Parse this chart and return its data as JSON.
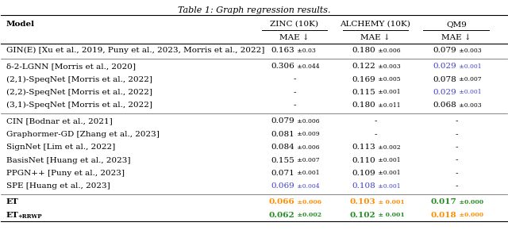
{
  "title": "Table 1: Graph regression results.",
  "col_headers_top": [
    "",
    "ZINC (10K)",
    "ALCHEMY (10K)",
    "QM9"
  ],
  "col_headers_sub": [
    "Model",
    "MAE ↓",
    "MAE ↓",
    "MAE ↓"
  ],
  "rows": [
    {
      "group": 0,
      "model": "GIN(E) [Xu et al., 2019, Puny et al., 2023, Morris et al., 2022]",
      "zinc": [
        "0.163",
        "±0.03",
        "black"
      ],
      "alchemy": [
        "0.180",
        "±0.006",
        "black"
      ],
      "qm9": [
        "0.079",
        "±0.003",
        "black"
      ]
    },
    {
      "group": 1,
      "model": "δ-2-LGNN [Morris et al., 2020]",
      "zinc": [
        "0.306",
        "±0.044",
        "black"
      ],
      "alchemy": [
        "0.122",
        "±0.003",
        "black"
      ],
      "qm9": [
        "0.029",
        "±0.001",
        "blue"
      ]
    },
    {
      "group": 1,
      "model": "(2,1)-SpeqNet [Morris et al., 2022]",
      "zinc": [
        "-",
        "",
        "black"
      ],
      "alchemy": [
        "0.169",
        "±0.005",
        "black"
      ],
      "qm9": [
        "0.078",
        "±0.007",
        "black"
      ]
    },
    {
      "group": 1,
      "model": "(2,2)-SpeqNet [Morris et al., 2022]",
      "zinc": [
        "-",
        "",
        "black"
      ],
      "alchemy": [
        "0.115",
        "±0.001",
        "black"
      ],
      "qm9": [
        "0.029",
        "±0.001",
        "blue"
      ]
    },
    {
      "group": 1,
      "model": "(3,1)-SpeqNet [Morris et al., 2022]",
      "zinc": [
        "-",
        "",
        "black"
      ],
      "alchemy": [
        "0.180",
        "±0.011",
        "black"
      ],
      "qm9": [
        "0.068",
        "±0.003",
        "black"
      ]
    },
    {
      "group": 2,
      "model": "CIN [Bodnar et al., 2021]",
      "zinc": [
        "0.079",
        "±0.006",
        "black"
      ],
      "alchemy": [
        "-",
        "",
        "black"
      ],
      "qm9": [
        "-",
        "",
        "black"
      ]
    },
    {
      "group": 2,
      "model": "Graphormer-GD [Zhang et al., 2023]",
      "zinc": [
        "0.081",
        "±0.009",
        "black"
      ],
      "alchemy": [
        "-",
        "",
        "black"
      ],
      "qm9": [
        "-",
        "",
        "black"
      ]
    },
    {
      "group": 2,
      "model": "SignNet [Lim et al., 2022]",
      "zinc": [
        "0.084",
        "±0.006",
        "black"
      ],
      "alchemy": [
        "0.113",
        "±0.002",
        "black"
      ],
      "qm9": [
        "-",
        "",
        "black"
      ]
    },
    {
      "group": 2,
      "model": "BasisNet [Huang et al., 2023]",
      "zinc": [
        "0.155",
        "±0.007",
        "black"
      ],
      "alchemy": [
        "0.110",
        "±0.001",
        "black"
      ],
      "qm9": [
        "-",
        "",
        "black"
      ]
    },
    {
      "group": 2,
      "model": "PPGN++ [Puny et al., 2023]",
      "zinc": [
        "0.071",
        "±0.001",
        "black"
      ],
      "alchemy": [
        "0.109",
        "±0.001",
        "black"
      ],
      "qm9": [
        "-",
        "",
        "black"
      ]
    },
    {
      "group": 2,
      "model": "SPE [Huang et al., 2023]",
      "zinc": [
        "0.069",
        "±0.004",
        "blue"
      ],
      "alchemy": [
        "0.108",
        "±0.001",
        "blue"
      ],
      "qm9": [
        "-",
        "",
        "black"
      ]
    },
    {
      "group": 3,
      "model": "ET",
      "zinc": [
        "0.066",
        "±0.006",
        "orange"
      ],
      "alchemy": [
        "0.103",
        "± 0.001",
        "orange"
      ],
      "qm9": [
        "0.017",
        "±0.000",
        "green"
      ]
    },
    {
      "group": 3,
      "model": "ET+RRWP",
      "zinc": [
        "0.062",
        "±0.002",
        "green"
      ],
      "alchemy": [
        "0.102",
        "± 0.001",
        "green"
      ],
      "qm9": [
        "0.018",
        "±0.000",
        "orange"
      ]
    }
  ],
  "colors": {
    "blue": "#4040CC",
    "orange": "#FF8C00",
    "green": "#228B22",
    "black": "#000000"
  },
  "bold_rows": [
    "ET",
    "ET+RRWP"
  ]
}
